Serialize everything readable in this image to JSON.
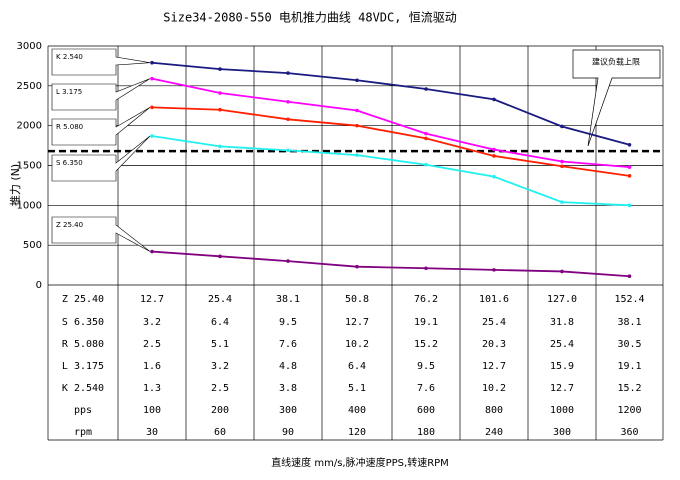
{
  "chart_data": {
    "type": "line",
    "title": "Size34-2080-550 电机推力曲线 48VDC, 恒流驱动",
    "y_label": "推力 (N)",
    "x_label": "直线速度 mm/s,脉冲速度PPS,转速RPM",
    "ylim": [
      0,
      3000
    ],
    "yticks": [
      0,
      500,
      1000,
      1500,
      2000,
      2500,
      3000
    ],
    "grid": true,
    "series": [
      {
        "name": "K 2.540",
        "color": "#1a1a80",
        "values": [
          2790,
          2710,
          2660,
          2570,
          2460,
          2330,
          1990,
          1760
        ]
      },
      {
        "name": "L 3.175",
        "color": "#ff00ff",
        "values": [
          2590,
          2410,
          2300,
          2190,
          1900,
          1700,
          1550,
          1480
        ]
      },
      {
        "name": "R 5.080",
        "color": "#ff2000",
        "values": [
          2230,
          2200,
          2080,
          2000,
          1840,
          1620,
          1490,
          1370
        ]
      },
      {
        "name": "S 6.350",
        "color": "#20f0f0",
        "values": [
          1870,
          1740,
          1690,
          1630,
          1510,
          1360,
          1040,
          1000
        ]
      },
      {
        "name": "Z 25.40",
        "color": "#800080",
        "values": [
          420,
          360,
          300,
          230,
          210,
          190,
          170,
          110
        ]
      }
    ],
    "threshold": {
      "value": 1680,
      "label": "建议负载上限"
    }
  },
  "table": {
    "rows": [
      {
        "label": "Z 25.40",
        "cells": [
          "12.7",
          "25.4",
          "38.1",
          "50.8",
          "76.2",
          "101.6",
          "127.0",
          "152.4"
        ]
      },
      {
        "label": "S 6.350",
        "cells": [
          "3.2",
          "6.4",
          "9.5",
          "12.7",
          "19.1",
          "25.4",
          "31.8",
          "38.1"
        ]
      },
      {
        "label": "R 5.080",
        "cells": [
          "2.5",
          "5.1",
          "7.6",
          "10.2",
          "15.2",
          "20.3",
          "25.4",
          "30.5"
        ]
      },
      {
        "label": "L 3.175",
        "cells": [
          "1.6",
          "3.2",
          "4.8",
          "6.4",
          "9.5",
          "12.7",
          "15.9",
          "19.1"
        ]
      },
      {
        "label": "K 2.540",
        "cells": [
          "1.3",
          "2.5",
          "3.8",
          "5.1",
          "7.6",
          "10.2",
          "12.7",
          "15.2"
        ]
      },
      {
        "label": "pps",
        "cells": [
          "100",
          "200",
          "300",
          "400",
          "600",
          "800",
          "1000",
          "1200"
        ]
      },
      {
        "label": "rpm",
        "cells": [
          "30",
          "60",
          "90",
          "120",
          "180",
          "240",
          "300",
          "360"
        ]
      }
    ]
  }
}
